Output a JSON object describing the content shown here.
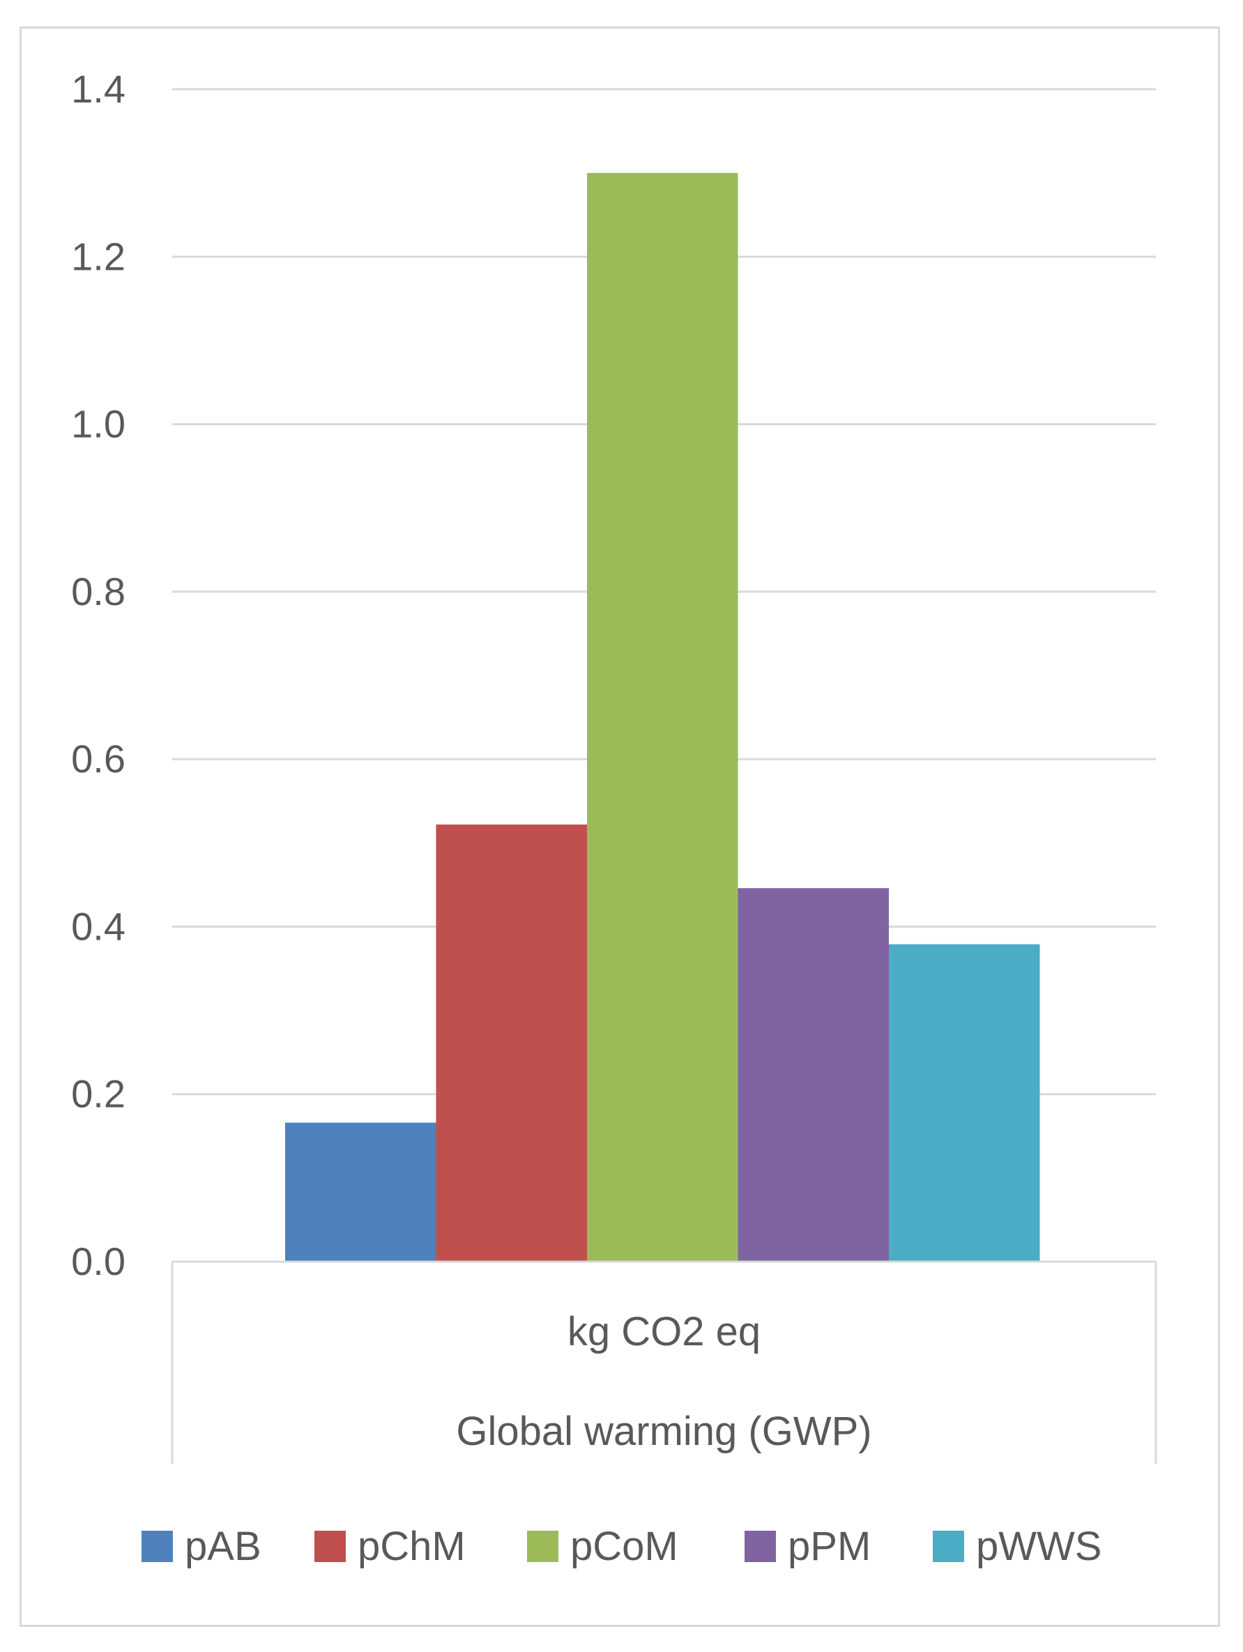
{
  "chart_data": {
    "type": "bar",
    "title": "",
    "xlabel": "",
    "ylabel": "",
    "categories": [
      "kg CO2 eq"
    ],
    "category_groups": [
      "Global warming (GWP)"
    ],
    "ylim": [
      0.0,
      1.4
    ],
    "yticks": [
      "0.0",
      "0.2",
      "0.4",
      "0.6",
      "0.8",
      "1.0",
      "1.2",
      "1.4"
    ],
    "grid": true,
    "legend_position": "bottom",
    "series": [
      {
        "name": "pAB",
        "values": [
          0.166
        ],
        "color": "#4F81BD"
      },
      {
        "name": "pChM",
        "values": [
          0.522
        ],
        "color": "#C0504D"
      },
      {
        "name": "pCoM",
        "values": [
          1.3
        ],
        "color": "#9BBB59"
      },
      {
        "name": "pPM",
        "values": [
          0.446
        ],
        "color": "#8064A2"
      },
      {
        "name": "pWWS",
        "values": [
          0.379
        ],
        "color": "#4BACC6"
      }
    ]
  }
}
